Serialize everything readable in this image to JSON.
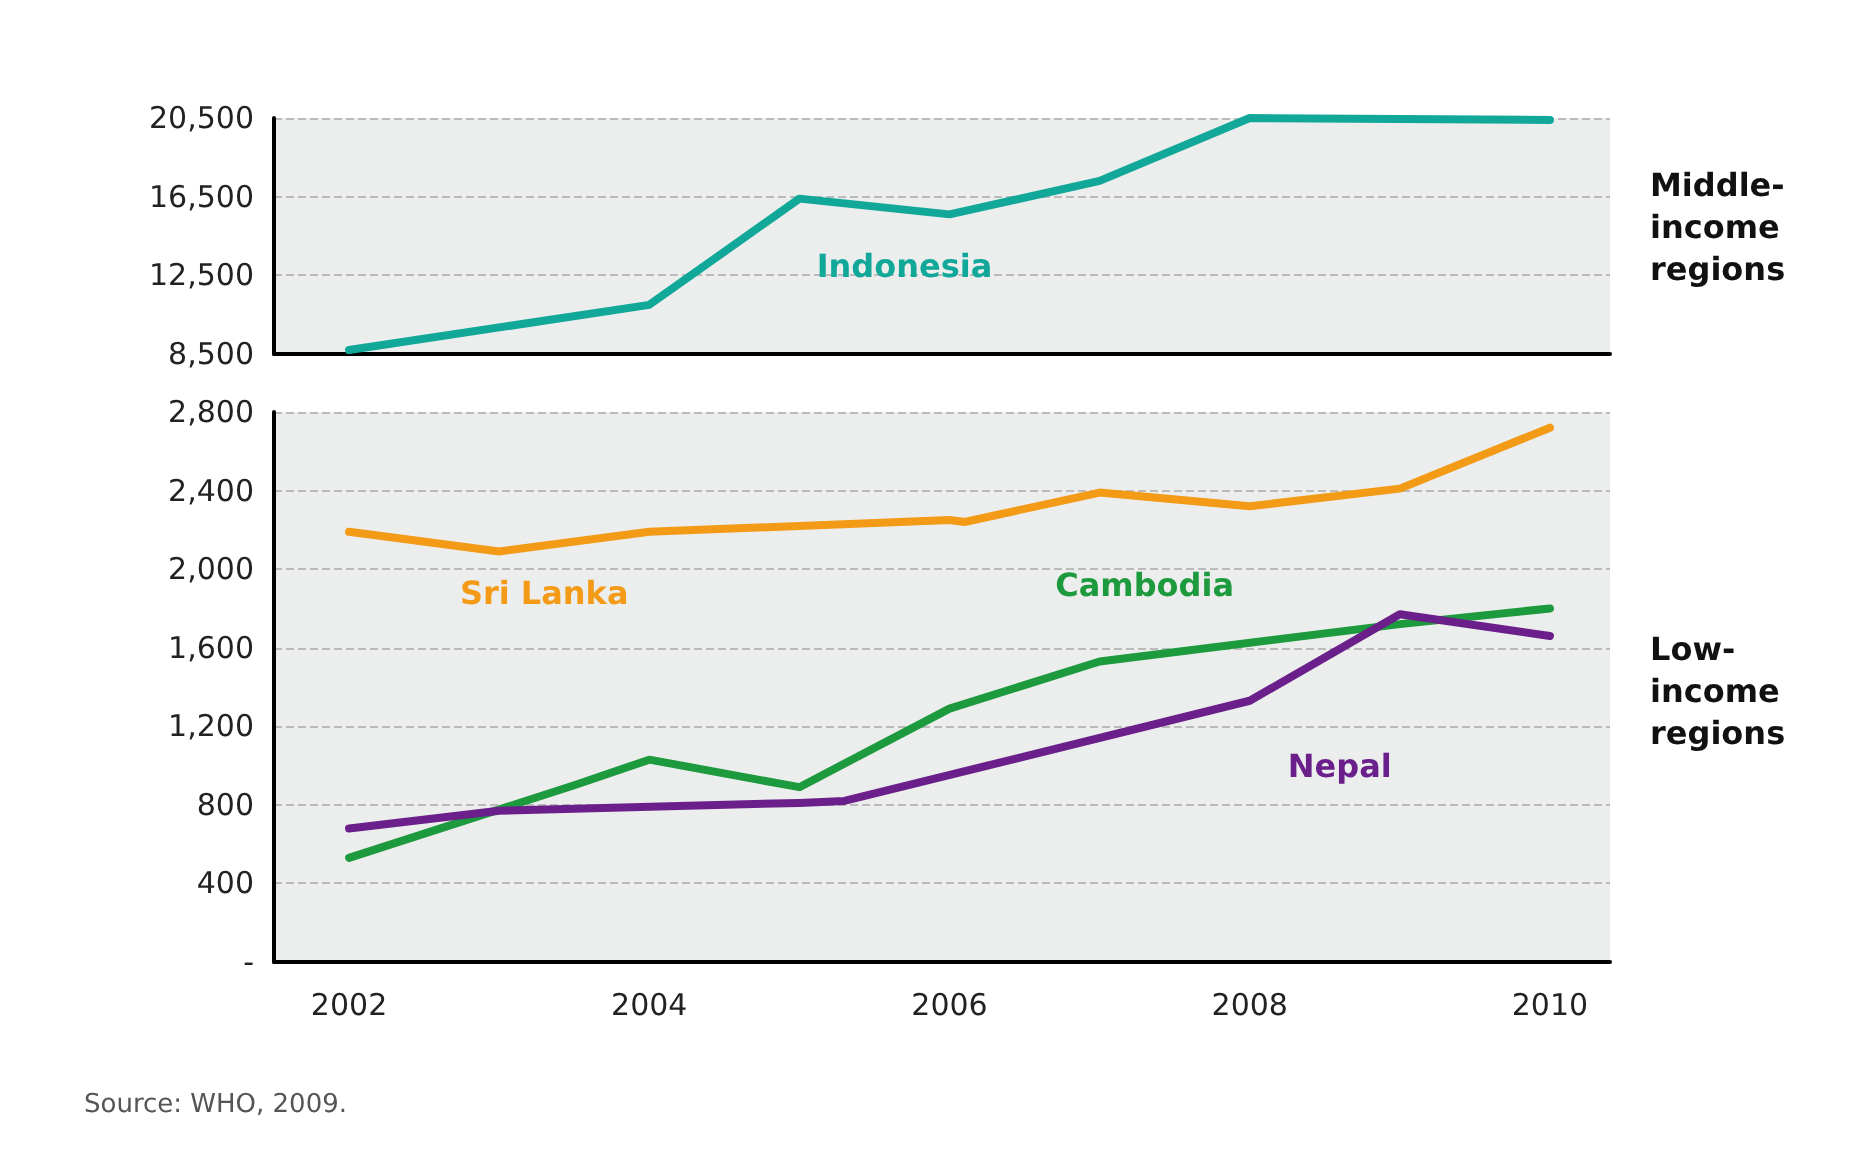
{
  "chart_data": [
    {
      "type": "line",
      "tick_labels": "y",
      "xlim": [
        2001.5,
        2010.4
      ],
      "xticks": [
        2002,
        2004,
        2006,
        2008,
        2010
      ],
      "ylim": [
        8500,
        20500
      ],
      "yticks": [
        {
          "value": 8500,
          "label": "8,500"
        },
        {
          "value": 12500,
          "label": "12,500"
        },
        {
          "value": 16500,
          "label": "16,500"
        },
        {
          "value": 20500,
          "label": "20,500"
        }
      ],
      "grid": "y",
      "marker": "none",
      "line_style": "solid",
      "annotations": [
        "Middle-\nincome\nregions"
      ],
      "series": [
        {
          "name": "Indonesia",
          "color": "#11a89a",
          "x": [
            2002,
            2004,
            2005,
            2006,
            2007,
            2008,
            2010
          ],
          "values": [
            8700,
            11000,
            16400,
            15600,
            17300,
            20500,
            20400
          ]
        }
      ]
    },
    {
      "type": "line",
      "xlim": [
        2001.5,
        2010.4
      ],
      "xticks": [
        2002,
        2004,
        2006,
        2008,
        2010
      ],
      "ylim": [
        0,
        2800
      ],
      "yticks": [
        {
          "value": 0,
          "label": "-"
        },
        400,
        800,
        {
          "value": 1200,
          "label": "1,200"
        },
        {
          "value": 1600,
          "label": "1,600"
        },
        {
          "value": 2000,
          "label": "2,000"
        },
        {
          "value": 2400,
          "label": "2,400"
        },
        {
          "value": 2800,
          "label": "2,800"
        }
      ],
      "grid": "y",
      "marker": "none",
      "line_style": "solid",
      "annotations": [
        "Low-\nincome\nregions",
        "Source: WHO, 2009."
      ],
      "series": [
        {
          "name": "Sri Lanka",
          "color": "#f39a16",
          "x": [
            2002,
            2003,
            2004,
            2006,
            2006.1,
            2007,
            2008,
            2009,
            2010
          ],
          "values": [
            2190,
            2090,
            2190,
            2250,
            2240,
            2390,
            2320,
            2410,
            2720
          ]
        },
        {
          "name": "Cambodia",
          "color": "#1e9a3e",
          "x": [
            2002,
            2003.5,
            2004,
            2005,
            2006,
            2007,
            2009,
            2010
          ],
          "values": [
            530,
            900,
            1030,
            890,
            1290,
            1530,
            1720,
            1800
          ]
        },
        {
          "name": "Nepal",
          "color": "#6a1f8a",
          "x": [
            2002,
            2003,
            2005,
            2005.3,
            2008,
            2009,
            2010
          ],
          "values": [
            680,
            770,
            810,
            820,
            1330,
            1770,
            1660
          ]
        }
      ]
    }
  ]
}
